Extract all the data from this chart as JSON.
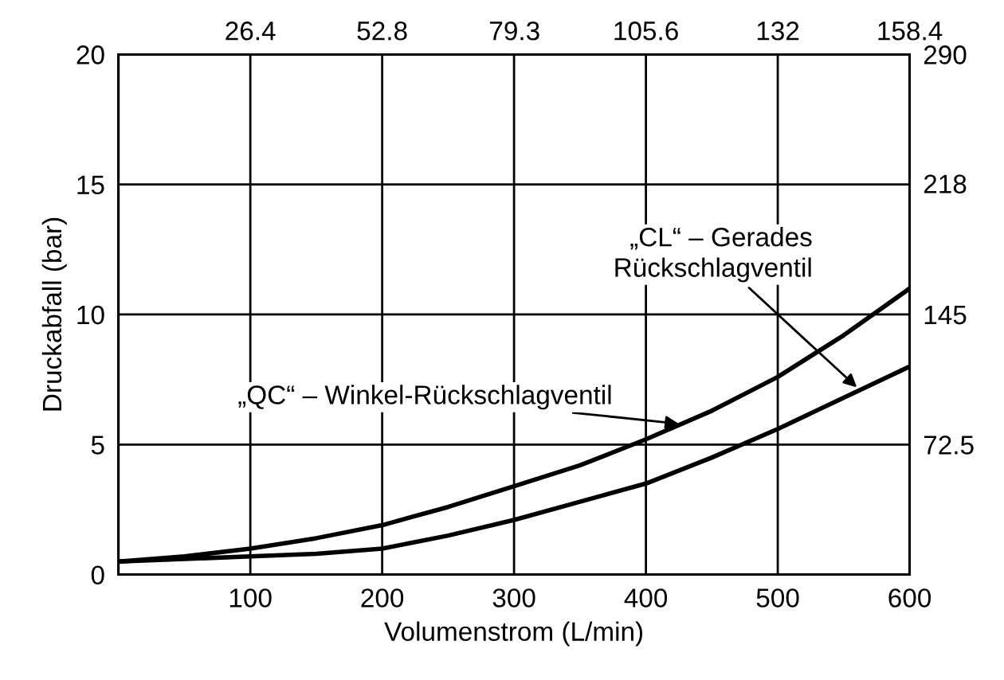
{
  "chart_data": {
    "type": "line",
    "xlabel": "Volumenstrom (L/min)",
    "ylabel": "Druckabfall (bar)",
    "x": [
      0,
      50,
      100,
      150,
      200,
      250,
      300,
      350,
      400,
      450,
      500,
      550,
      600
    ],
    "series": [
      {
        "color": "#000000",
        "values": [
          0.5,
          0.7,
          1.0,
          1.4,
          1.9,
          2.6,
          3.4,
          4.2,
          5.2,
          6.3,
          7.6,
          9.2,
          11.0
        ]
      },
      {
        "color": "#000000",
        "values": [
          0.5,
          0.6,
          0.7,
          0.8,
          1.0,
          1.5,
          2.1,
          2.8,
          3.5,
          4.5,
          5.6,
          6.8,
          8.0
        ]
      }
    ],
    "xlim": [
      0,
      600
    ],
    "ylim": [
      0,
      20
    ],
    "xticks": [
      100,
      200,
      300,
      400,
      500,
      600
    ],
    "yticks": [
      0,
      5,
      10,
      15,
      20
    ],
    "x2lim": [
      0,
      158.4
    ],
    "x2ticks": [
      26.4,
      52.8,
      79.3,
      105.6,
      132,
      158.4
    ],
    "y2lim": [
      0,
      290
    ],
    "y2ticks": [
      72.5,
      145,
      218,
      290
    ],
    "grid": true,
    "legend": false,
    "marker": "none",
    "line_style": "solid",
    "annotations": [
      {
        "text": "„QC“ – Winkel-Rückschlagventil",
        "x": 425,
        "y": 5.8
      },
      {
        "text": "„CL“ – Gerades\nRückschlagventil",
        "x": 560,
        "y": 7.2
      }
    ]
  }
}
